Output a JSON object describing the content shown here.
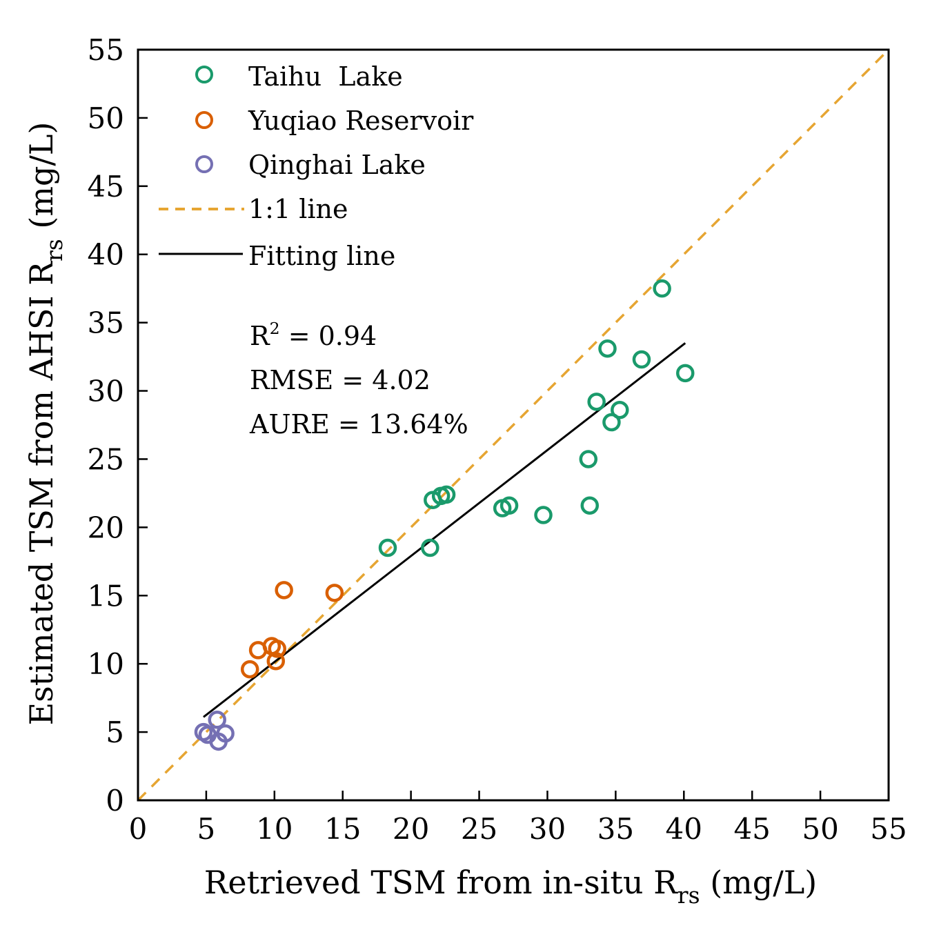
{
  "chart_data": {
    "type": "scatter",
    "xlabel": {
      "main": "Retrieved TSM from in-situ R",
      "sub": "rs",
      "unit": " (mg/L)"
    },
    "ylabel": {
      "main": "Estimated TSM from AHSI R",
      "sub": "rs",
      "unit": " (mg/L)"
    },
    "xlim": [
      0,
      55
    ],
    "ylim": [
      0,
      55
    ],
    "ticks": [
      0,
      5,
      10,
      15,
      20,
      25,
      30,
      35,
      40,
      45,
      50,
      55
    ],
    "legend_position": "top-left",
    "series": [
      {
        "name": "Taihu  Lake",
        "color": "#1a9a6b",
        "points": [
          [
            18.3,
            18.5
          ],
          [
            21.4,
            18.5
          ],
          [
            21.6,
            22.0
          ],
          [
            22.2,
            22.3
          ],
          [
            22.6,
            22.4
          ],
          [
            26.7,
            21.4
          ],
          [
            27.2,
            21.6
          ],
          [
            29.7,
            20.9
          ],
          [
            33.0,
            25.0
          ],
          [
            33.1,
            21.6
          ],
          [
            33.6,
            29.2
          ],
          [
            34.4,
            33.1
          ],
          [
            34.7,
            27.7
          ],
          [
            35.3,
            28.6
          ],
          [
            36.9,
            32.3
          ],
          [
            38.4,
            37.5
          ],
          [
            40.1,
            31.3
          ]
        ]
      },
      {
        "name": "Yuqiao Reservoir",
        "color": "#d95f02",
        "points": [
          [
            8.2,
            9.6
          ],
          [
            8.8,
            11.0
          ],
          [
            9.8,
            11.3
          ],
          [
            10.2,
            11.1
          ],
          [
            10.1,
            10.2
          ],
          [
            10.7,
            15.4
          ],
          [
            14.4,
            15.2
          ]
        ]
      },
      {
        "name": "Qinghai Lake",
        "color": "#7570b3",
        "points": [
          [
            4.8,
            5.0
          ],
          [
            5.1,
            4.8
          ],
          [
            5.8,
            5.9
          ],
          [
            6.4,
            4.9
          ],
          [
            5.9,
            4.3
          ]
        ]
      }
    ],
    "one_to_one_line": {
      "name": "1:1 line",
      "color": "#e6a532",
      "from": [
        0,
        0
      ],
      "to": [
        55,
        55
      ]
    },
    "fitting_line": {
      "name": "Fitting line",
      "color": "#000000",
      "from": [
        4.8,
        6.1
      ],
      "to": [
        40.1,
        33.5
      ]
    },
    "stats": {
      "r2_label": "R",
      "r2_sup": "2",
      "r2_value": " = 0.94",
      "rmse": "RMSE = 4.02",
      "aure": "AURE = 13.64%"
    }
  }
}
